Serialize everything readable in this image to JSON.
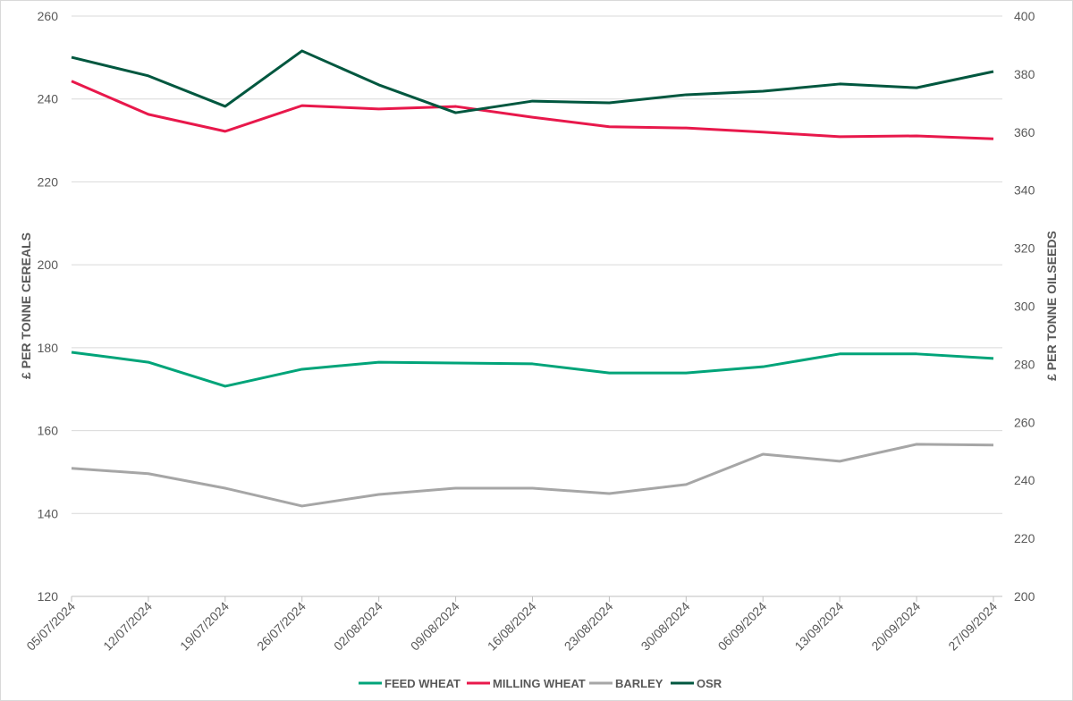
{
  "chart_data": {
    "type": "line",
    "title": "",
    "xlabel": "",
    "ylabel": "£ PER TONNE CEREALS",
    "ylabel_right": "£ PER TONNE OILSEEDS",
    "ylim": [
      120,
      260
    ],
    "yticks": [
      120,
      140,
      160,
      180,
      200,
      220,
      240,
      260
    ],
    "ylim_right": [
      200,
      400
    ],
    "yticks_right": [
      200,
      220,
      240,
      260,
      280,
      300,
      320,
      340,
      360,
      380,
      400
    ],
    "grid": true,
    "legend_position": "bottom",
    "categories": [
      "05/07/2024",
      "12/07/2024",
      "19/07/2024",
      "26/07/2024",
      "02/08/2024",
      "09/08/2024",
      "16/08/2024",
      "23/08/2024",
      "30/08/2024",
      "06/09/2024",
      "13/09/2024",
      "20/09/2024",
      "27/09/2024"
    ],
    "series": [
      {
        "name": "FEED WHEAT",
        "axis": "left",
        "color": "#00a479",
        "values": [
          178.9,
          176.5,
          170.7,
          174.8,
          176.5,
          176.3,
          176.1,
          173.9,
          173.9,
          175.4,
          178.5,
          178.5,
          177.4
        ]
      },
      {
        "name": "MILLING WHEAT",
        "axis": "left",
        "color": "#e8184b",
        "values": [
          244.3,
          236.3,
          232.2,
          238.4,
          237.6,
          238.2,
          235.6,
          233.3,
          233.0,
          232.0,
          230.9,
          231.1,
          230.4
        ]
      },
      {
        "name": "BARLEY",
        "axis": "left",
        "color": "#a6a6a6",
        "values": [
          150.9,
          149.6,
          146.1,
          141.8,
          144.6,
          146.1,
          146.1,
          144.8,
          147.0,
          154.3,
          152.6,
          156.7,
          156.5
        ]
      },
      {
        "name": "OSR",
        "axis": "right",
        "color": "#00573f",
        "values": [
          385.8,
          379.4,
          368.9,
          388.0,
          376.3,
          366.7,
          370.7,
          370.1,
          372.9,
          374.1,
          376.6,
          375.3,
          380.9
        ]
      }
    ]
  }
}
